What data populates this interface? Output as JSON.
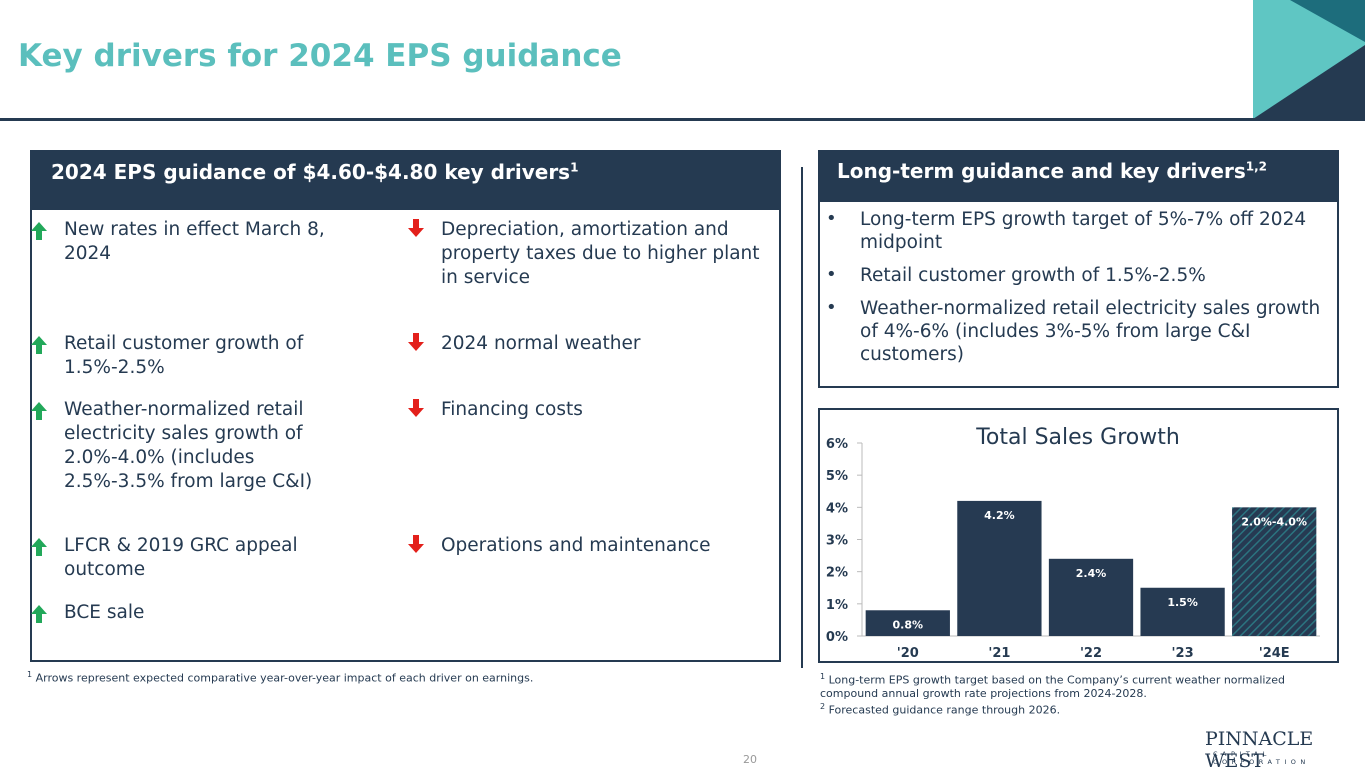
{
  "title": "Key drivers for 2024 EPS guidance",
  "left_panel": {
    "header": "2024 EPS guidance of $4.60-$4.80 key drivers",
    "header_sup": "1",
    "positive_drivers": [
      "New rates in effect March 8, 2024",
      "Retail customer growth of 1.5%-2.5%",
      "Weather-normalized retail electricity sales growth of 2.0%-4.0% (includes 2.5%-3.5% from large C&I)",
      "LFCR & 2019 GRC appeal outcome",
      "BCE sale"
    ],
    "negative_drivers": [
      "Depreciation, amortization and property taxes due to higher plant in service",
      "2024 normal weather",
      "Financing costs",
      "Operations and maintenance"
    ]
  },
  "right_panel": {
    "header": "Long-term guidance and key drivers",
    "header_sup": "1,2",
    "bullets": [
      "Long-term EPS growth target of 5%-7% off 2024 midpoint",
      "Retail customer growth of 1.5%-2.5%",
      "Weather-normalized retail electricity sales growth of 4%-6% (includes 3%-5% from large C&I customers)"
    ]
  },
  "chart_data": {
    "type": "bar",
    "title": "Total Sales Growth",
    "categories": [
      "'20",
      "'21",
      "'22",
      "'23",
      "'24E"
    ],
    "values": [
      0.8,
      4.2,
      2.4,
      1.5,
      4.0
    ],
    "value_labels": [
      "0.8%",
      "4.2%",
      "2.4%",
      "1.5%",
      "2.0%-4.0%"
    ],
    "hatched": [
      false,
      false,
      false,
      false,
      true
    ],
    "color": "#263a52",
    "ylim": [
      0,
      6
    ],
    "yticks": [
      {
        "value": 0,
        "label": "0%"
      },
      {
        "value": 1,
        "label": "1%"
      },
      {
        "value": 2,
        "label": "2%"
      },
      {
        "value": 3,
        "label": "3%"
      },
      {
        "value": 4,
        "label": "4%"
      },
      {
        "value": 5,
        "label": "5%"
      },
      {
        "value": 6,
        "label": "6%"
      }
    ]
  },
  "footnotes_left": [
    {
      "marker": "1",
      "text": "Arrows represent expected comparative year-over-year impact of each driver on earnings."
    }
  ],
  "footnotes_right": [
    {
      "marker": "1",
      "text": "Long-term EPS growth target based on the Company’s current weather normalized compound annual growth rate projections from 2024-2028."
    },
    {
      "marker": "2",
      "text": "Forecasted guidance range through 2026."
    }
  ],
  "logo": {
    "name": "PINNACLE WEST",
    "tagline": "CAPITAL CORPORATION"
  },
  "page_number": "20"
}
